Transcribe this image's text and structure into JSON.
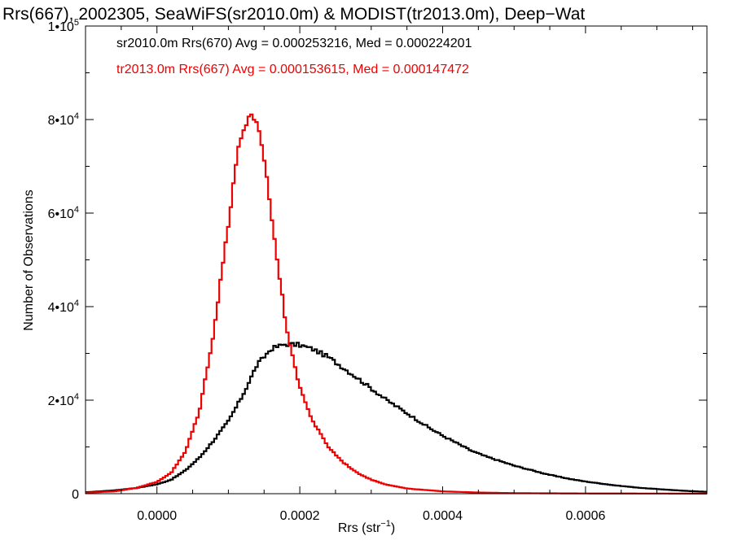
{
  "chart_data": {
    "type": "line",
    "title": "Rrs(667), 2002305, SeaWiFS(sr2010.0m) & MODIST(tr2013.0m), Deep−Wat",
    "xlabel": "Rrs (str",
    "xlabel_sup": "−1",
    "xlabel_tail": ")",
    "ylabel": "Number of Observations",
    "xlim": [
      -0.0001,
      0.00077
    ],
    "ylim": [
      0,
      100000
    ],
    "x_ticks": [
      0.0,
      0.0002,
      0.0004,
      0.0006
    ],
    "x_tick_labels": [
      "0.0000",
      "0.0002",
      "0.0004",
      "0.0006"
    ],
    "y_ticks": [
      {
        "value": 0,
        "base": "0",
        "exp": ""
      },
      {
        "value": 20000,
        "base": "2•10",
        "exp": "4"
      },
      {
        "value": 40000,
        "base": "4•10",
        "exp": "4"
      },
      {
        "value": 60000,
        "base": "6•10",
        "exp": "4"
      },
      {
        "value": 80000,
        "base": "8•10",
        "exp": "4"
      },
      {
        "value": 100000,
        "base": "1•10",
        "exp": "5"
      }
    ],
    "series": [
      {
        "name": "sr2010.0m Rrs(670)",
        "color": "#000000",
        "annotation": "sr2010.0m Rrs(670) Avg = 0.000253216, Med = 0.000224201",
        "x": [
          -0.0001,
          -6e-05,
          -3e-05,
          0.0,
          2e-05,
          4e-05,
          6e-05,
          8e-05,
          0.0001,
          0.00012,
          0.00014,
          0.00016,
          0.00018,
          0.0002,
          0.00022,
          0.00024,
          0.00026,
          0.00028,
          0.0003,
          0.00032,
          0.00034,
          0.00036,
          0.00038,
          0.0004,
          0.00042,
          0.00044,
          0.00046,
          0.00048,
          0.0005,
          0.00052,
          0.00054,
          0.00056,
          0.00058,
          0.0006,
          0.00062,
          0.00064,
          0.00066,
          0.00068,
          0.0007,
          0.00072,
          0.00074,
          0.00077
        ],
        "y": [
          300,
          700,
          1200,
          2000,
          3000,
          5000,
          7800,
          11500,
          15500,
          21000,
          27500,
          31000,
          32000,
          31800,
          30800,
          29200,
          27000,
          24800,
          22500,
          20200,
          18200,
          16200,
          14200,
          12400,
          10800,
          9200,
          8000,
          7000,
          6000,
          5200,
          4400,
          3700,
          3100,
          2600,
          2200,
          1800,
          1500,
          1200,
          1000,
          800,
          600,
          400
        ]
      },
      {
        "name": "tr2013.0m Rrs(667)",
        "color": "#ee0000",
        "annotation": "tr2013.0m Rrs(667) Avg = 0.000153615, Med = 0.000147472",
        "x": [
          -0.0001,
          -6e-05,
          -3e-05,
          0.0,
          2e-05,
          4e-05,
          6e-05,
          8e-05,
          0.0001,
          0.00011,
          0.00012,
          0.00013,
          0.00014,
          0.00015,
          0.00016,
          0.00017,
          0.00018,
          0.00019,
          0.0002,
          0.00021,
          0.00022,
          0.00024,
          0.00026,
          0.00028,
          0.0003,
          0.00032,
          0.00035,
          0.0004,
          0.00045,
          0.0005,
          0.0006,
          0.00077
        ],
        "y": [
          200,
          500,
          1200,
          2500,
          4500,
          9000,
          18000,
          35000,
          58000,
          70000,
          78000,
          80500,
          78500,
          72000,
          60000,
          48000,
          37000,
          29000,
          23000,
          18500,
          15000,
          10000,
          6800,
          4500,
          3000,
          2000,
          1100,
          500,
          250,
          120,
          50,
          20
        ]
      }
    ]
  }
}
